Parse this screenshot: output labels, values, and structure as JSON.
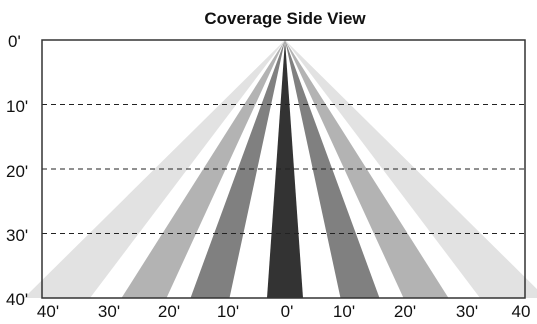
{
  "title": "Coverage Side View",
  "depth_labels": [
    "0'",
    "10'",
    "20'",
    "30'",
    "40'"
  ],
  "width_labels": [
    "40'",
    "30'",
    "20'",
    "10'",
    "0'",
    "10'",
    "20'",
    "30'",
    "40"
  ],
  "beams": [
    {
      "name": "beam-outer-light",
      "half_width_ft": 38,
      "band_width_ft": 11,
      "color": "#e2e2e2"
    },
    {
      "name": "beam-mid-gray",
      "half_width_ft": 23.5,
      "band_width_ft": 7.5,
      "color": "#b3b3b3"
    },
    {
      "name": "beam-dark-gray",
      "half_width_ft": 12.5,
      "band_width_ft": 6.5,
      "color": "#808080"
    },
    {
      "name": "beam-center-black",
      "half_width_ft": 1.5,
      "band_width_ft": 3,
      "color": "#333333"
    }
  ],
  "colors": {
    "frame": "#333333",
    "grid": "#222222"
  }
}
